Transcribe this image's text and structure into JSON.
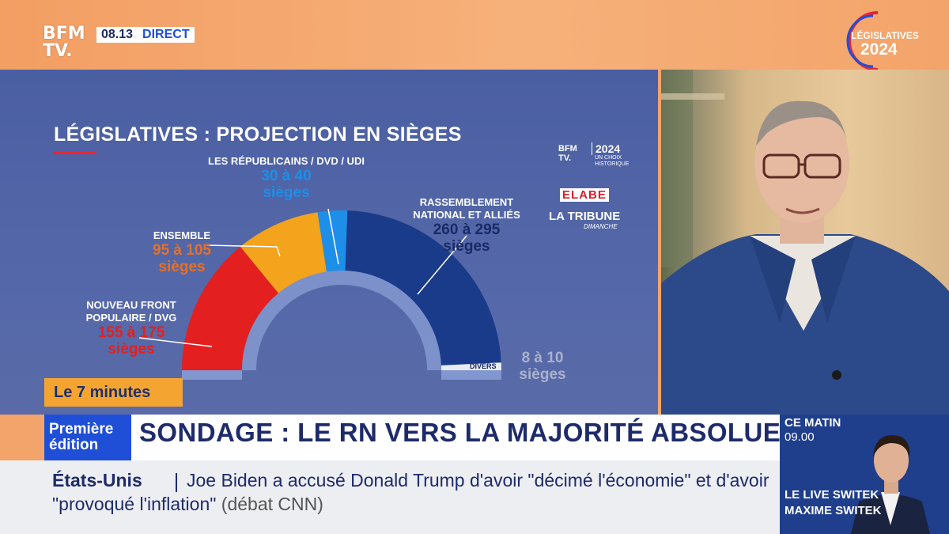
{
  "channel": {
    "logo_line1": "BFM",
    "logo_line2": "TV.",
    "time": "08.13",
    "live_label": "DIRECT"
  },
  "event_badge": {
    "line1": "LÉGISLATIVES",
    "line2": "2024"
  },
  "graphic": {
    "title": "LÉGISLATIVES : PROJECTION EN SIÈGES",
    "segment_label": "Le 7 minutes",
    "sources": {
      "bfm_line1": "BFM",
      "bfm_line2": "TV.",
      "year": "2024",
      "year_sub": "UN CHOIX HISTORIQUE",
      "pollster": "ELABE",
      "newspaper": "LA TRIBUNE",
      "newspaper_sub": "DIMANCHE"
    }
  },
  "chart_data": {
    "type": "pie",
    "title": "LÉGISLATIVES : PROJECTION EN SIÈGES",
    "parties": [
      {
        "name": "NOUVEAU FRONT POPULAIRE / DVG",
        "seats_range": "155 à 175",
        "unit": "sièges",
        "min": 155,
        "max": 175,
        "color": "#e3201f"
      },
      {
        "name": "ENSEMBLE",
        "seats_range": "95 à 105",
        "unit": "sièges",
        "min": 95,
        "max": 105,
        "color": "#f4a31c"
      },
      {
        "name": "LES RÉPUBLICAINS / DVD / UDI",
        "seats_range": "30 à 40",
        "unit": "sièges",
        "min": 30,
        "max": 40,
        "color": "#1e8fe8"
      },
      {
        "name": "RASSEMBLEMENT NATIONAL ET ALLIÉS",
        "seats_range": "260 à 295",
        "unit": "sièges",
        "min": 260,
        "max": 295,
        "color": "#1a3b8a"
      },
      {
        "name": "DIVERS",
        "seats_range": "8 à 10",
        "unit": "sièges",
        "min": 8,
        "max": 10,
        "color": "#e8ecf2"
      }
    ]
  },
  "banner": {
    "show_line1": "Première",
    "show_line2": "édition",
    "headline": "SONDAGE : LE RN VERS LA MAJORITÉ ABSOLUE ?"
  },
  "ticker": {
    "tag": "États-Unis",
    "text": "Joe Biden a accusé Donald Trump d'avoir \"décimé l'économie\" et d'avoir \"provoqué l'inflation\"",
    "source": "(débat CNN)"
  },
  "promo": {
    "when": "CE MATIN",
    "hour": "09.00",
    "show": "LE LIVE SWITEK",
    "host": "MAXIME SWITEK"
  },
  "colors": {
    "bfm_blue": "#1f4fd6",
    "navy": "#1d2b6b",
    "orange": "#f4a531",
    "graphic_bg": "#4f63a6"
  }
}
